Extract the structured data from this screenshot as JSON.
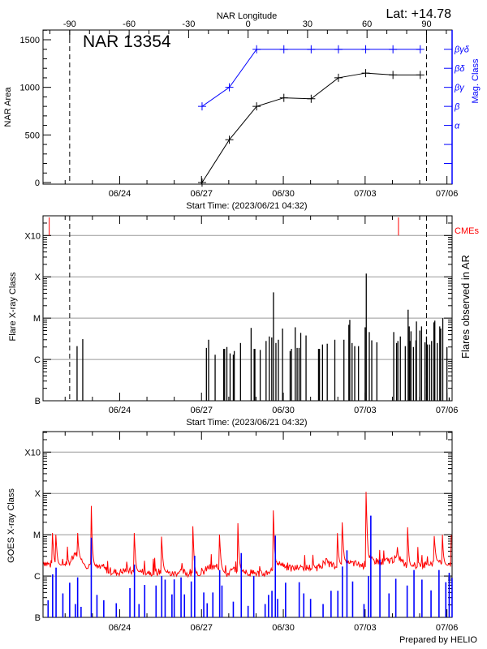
{
  "header": {
    "lat_label": "Lat: +14.78"
  },
  "footer": {
    "credit": "Prepared by HELIO"
  },
  "colors": {
    "axis": "#000000",
    "grid": "#999999",
    "mag_class": "#0000ff",
    "cme": "#ff0000",
    "goes_long": "#ff0000",
    "goes_short": "#0000ff"
  },
  "chart_data": [
    {
      "type": "line",
      "title": "NAR 13354",
      "xlabel": "Start Time: (2023/06/21 04:32)",
      "ylabel": "NAR Area",
      "x2label": "NAR Longitude",
      "y2label": "Mag. Class",
      "xlim": [
        "2023/06/21 04:32",
        "2023/07/06 04:32"
      ],
      "xticks": [
        "06/24",
        "06/27",
        "06/30",
        "07/03",
        "07/06"
      ],
      "ylim": [
        0,
        1600
      ],
      "yticks": [
        0,
        500,
        1000,
        1500
      ],
      "x2ticks": [
        -90,
        -60,
        -30,
        0,
        30,
        60,
        90
      ],
      "limb_lines": [
        {
          "longitude": -90,
          "time": "06/22 04:00"
        },
        {
          "longitude": 90,
          "time": "07/05 06:00"
        }
      ],
      "y2ticks": [
        "α",
        "β",
        "βγ",
        "βδ",
        "βγδ"
      ],
      "grid": false,
      "series": [
        {
          "name": "NAR Area",
          "color": "#000000",
          "x": [
            "06/27 00:30",
            "06/28 00:30",
            "06/29 00:30",
            "06/30 00:30",
            "07/01 00:30",
            "07/02 00:30",
            "07/03 00:30",
            "07/04 00:30",
            "07/05 00:30"
          ],
          "values": [
            0,
            450,
            800,
            890,
            880,
            1100,
            1150,
            1130,
            1130
          ]
        },
        {
          "name": "Mag. Class",
          "color": "#0000ff",
          "x": [
            "06/27 00:30",
            "06/28 00:30",
            "06/29 00:30",
            "06/30 00:30",
            "07/01 00:30",
            "07/02 00:30",
            "07/03 00:30",
            "07/04 00:30",
            "07/05 00:30"
          ],
          "values": [
            "β",
            "βγ",
            "βγδ",
            "βγδ",
            "βγδ",
            "βγδ",
            "βγδ",
            "βγδ",
            "βγδ"
          ]
        }
      ]
    },
    {
      "type": "bar",
      "xlabel": "Start Time: (2023/06/21 04:32)",
      "ylabel": "Flare X-ray Class",
      "y2label": "Flares observed in AR",
      "cme_label": "CMEs",
      "xticks": [
        "06/24",
        "06/27",
        "06/30",
        "07/03",
        "07/06"
      ],
      "yticks": [
        "B",
        "C",
        "M",
        "X",
        "X10"
      ],
      "grid": true,
      "cmes": [
        "06/21 10:00",
        "07/04 05:20"
      ],
      "flares": [
        [
          "06/22 10:30",
          "C2.1"
        ],
        [
          "06/22 15:30",
          "C3.1"
        ],
        [
          "06/27 04:20",
          "C1.9"
        ],
        [
          "06/27 06:15",
          "C3.0"
        ],
        [
          "06/27 12:00",
          "C1.3"
        ],
        [
          "06/27 19:30",
          "C1.8"
        ],
        [
          "06/27 20:20",
          "C1.8"
        ],
        [
          "06/27 22:20",
          "C2.0"
        ],
        [
          "06/28 01:10",
          "C1.4"
        ],
        [
          "06/28 04:00",
          "C1.3"
        ],
        [
          "06/28 04:50",
          "C1.6"
        ],
        [
          "06/28 10:20",
          "C2.5"
        ],
        [
          "06/28 19:40",
          "C5.8"
        ],
        [
          "06/28 22:20",
          "C1.8"
        ],
        [
          "06/28 23:00",
          "C1.8"
        ],
        [
          "06/29 03:40",
          "C1.7"
        ],
        [
          "06/29 08:50",
          "C2.8"
        ],
        [
          "06/29 11:40",
          "C3.6"
        ],
        [
          "06/29 13:50",
          "C3.4"
        ],
        [
          "06/29 15:20",
          "M4.2"
        ],
        [
          "06/29 17:30",
          "C2.5"
        ],
        [
          "06/29 19:40",
          "C3.0"
        ],
        [
          "06/29 23:20",
          "C5.6"
        ],
        [
          "06/30 06:00",
          "C1.6"
        ],
        [
          "06/30 07:10",
          "C1.8"
        ],
        [
          "06/30 10:30",
          "C6.0"
        ],
        [
          "06/30 12:10",
          "C1.9"
        ],
        [
          "06/30 13:50",
          "C1.9"
        ],
        [
          "06/30 15:20",
          "C4.4"
        ],
        [
          "06/30 20:00",
          "C3.8"
        ],
        [
          "07/01 07:00",
          "C1.8"
        ],
        [
          "07/01 07:50",
          "C1.8"
        ],
        [
          "07/01 10:30",
          "C2.3"
        ],
        [
          "07/01 14:40",
          "C2.4"
        ],
        [
          "07/01 21:20",
          "C3.0"
        ],
        [
          "07/02 05:20",
          "C3.0"
        ],
        [
          "07/02 09:40",
          "C6.9"
        ],
        [
          "07/02 10:30",
          "C9.1"
        ],
        [
          "07/02 12:30",
          "C2.5"
        ],
        [
          "07/02 14:50",
          "C2.1"
        ],
        [
          "07/02 18:10",
          "C2.1"
        ],
        [
          "07/03 00:00",
          "C6.0"
        ],
        [
          "07/03 01:00",
          "X1.2"
        ],
        [
          "07/03 03:40",
          "C4.6"
        ],
        [
          "07/03 05:50",
          "C2.9"
        ],
        [
          "07/03 10:20",
          "C2.6"
        ],
        [
          "07/04 01:10",
          "C4.6"
        ],
        [
          "07/04 03:40",
          "C2.5"
        ],
        [
          "07/04 04:50",
          "C2.8"
        ],
        [
          "07/04 07:00",
          "C3.6"
        ],
        [
          "07/04 11:20",
          "C2.1"
        ],
        [
          "07/04 13:50",
          "M1.6"
        ],
        [
          "07/04 14:50",
          "C6.3"
        ],
        [
          "07/04 15:20",
          "C2.8"
        ],
        [
          "07/04 16:20",
          "C4.8"
        ],
        [
          "07/04 18:30",
          "C2.0"
        ],
        [
          "07/04 20:40",
          "C2.9"
        ],
        [
          "07/04 21:10",
          "C8.3"
        ],
        [
          "07/05 00:10",
          "C5.0"
        ],
        [
          "07/05 01:40",
          "C6.3"
        ],
        [
          "07/05 04:40",
          "C2.6"
        ],
        [
          "07/05 06:00",
          "C3.6"
        ],
        [
          "07/05 06:50",
          "C2.3"
        ],
        [
          "07/05 08:50",
          "C2.3"
        ],
        [
          "07/05 10:30",
          "C2.8"
        ],
        [
          "07/05 12:30",
          "C7.9"
        ],
        [
          "07/05 13:20",
          "C8.7"
        ],
        [
          "07/05 15:30",
          "C2.5"
        ],
        [
          "07/05 17:40",
          "C6.3"
        ],
        [
          "07/05 18:30",
          "C5.6"
        ],
        [
          "07/05 20:20",
          "M1.0"
        ],
        [
          "07/06 00:00",
          "C2.0"
        ],
        [
          "07/06 02:00",
          "B1.2"
        ]
      ]
    },
    {
      "type": "line",
      "ylabel": "GOES X-ray Class",
      "xticks": [
        "06/24",
        "06/27",
        "06/30",
        "07/03",
        "07/06"
      ],
      "yticks": [
        "B",
        "C",
        "M",
        "X",
        "X10"
      ],
      "grid": true,
      "series": [
        {
          "color": "#ff0000",
          "background": [
            [
              "06/21 05:00",
              "C2.2"
            ],
            [
              "06/21 12:00",
              "C1.8"
            ],
            [
              "06/21 20:00",
              "C1.8"
            ],
            [
              "06/22 04:00",
              "C2.2"
            ],
            [
              "06/22 10:00",
              "C3.4"
            ],
            [
              "06/22 16:00",
              "C2.0"
            ],
            [
              "06/22 22:00",
              "C1.7"
            ],
            [
              "06/23 04:00",
              "C1.6"
            ],
            [
              "06/23 10:00",
              "C1.5"
            ],
            [
              "06/23 16:00",
              "C1.3"
            ],
            [
              "06/23 22:00",
              "C1.2"
            ],
            [
              "06/24 06:00",
              "C1.4"
            ],
            [
              "06/24 14:00",
              "C1.2"
            ],
            [
              "06/24 22:00",
              "C1.3"
            ],
            [
              "06/25 06:00",
              "C1.2"
            ],
            [
              "06/25 14:00",
              "C1.3"
            ],
            [
              "06/25 22:00",
              "C1.1"
            ],
            [
              "06/26 06:00",
              "C1.3"
            ],
            [
              "06/26 14:00",
              "C1.1"
            ],
            [
              "06/26 22:00",
              "C1.0"
            ],
            [
              "06/27 06:00",
              "C1.6"
            ],
            [
              "06/27 14:00",
              "C1.6"
            ],
            [
              "06/27 22:00",
              "C1.1"
            ],
            [
              "06/28 06:00",
              "C1.5"
            ],
            [
              "06/28 14:00",
              "C1.2"
            ],
            [
              "06/28 22:00",
              "C1.2"
            ],
            [
              "06/29 06:00",
              "C1.1"
            ],
            [
              "06/29 14:00",
              "C1.4"
            ],
            [
              "06/29 22:00",
              "C2.0"
            ],
            [
              "06/30 06:00",
              "C1.5"
            ],
            [
              "06/30 14:00",
              "C1.6"
            ],
            [
              "06/30 22:00",
              "C1.6"
            ],
            [
              "07/01 06:00",
              "C1.6"
            ],
            [
              "07/01 14:00",
              "C2.2"
            ],
            [
              "07/01 22:00",
              "C1.6"
            ],
            [
              "07/02 06:00",
              "C2.0"
            ],
            [
              "07/02 14:00",
              "C2.0"
            ],
            [
              "07/02 22:00",
              "C1.8"
            ],
            [
              "07/03 06:00",
              "C2.4"
            ],
            [
              "07/03 14:00",
              "C2.2"
            ],
            [
              "07/03 22:00",
              "C2.4"
            ],
            [
              "07/04 06:00",
              "C2.8"
            ],
            [
              "07/04 14:00",
              "C1.5"
            ],
            [
              "07/04 22:00",
              "C1.9"
            ],
            [
              "07/05 06:00",
              "C1.9"
            ],
            [
              "07/05 14:00",
              "C2.2"
            ],
            [
              "07/05 22:00",
              "C1.8"
            ],
            [
              "07/06 04:00",
              "C1.8"
            ]
          ],
          "peaks": [
            [
              "06/21 13:00",
              "M1.1"
            ],
            [
              "06/21 16:00",
              "M1.0"
            ],
            [
              "06/22 11:00",
              "M1.1"
            ],
            [
              "06/22 23:00",
              "M5.0"
            ],
            [
              "06/24 13:00",
              "M1.1"
            ],
            [
              "06/25 13:00",
              "C9.0"
            ],
            [
              "06/26 16:30",
              "M1.6"
            ],
            [
              "06/27 16:00",
              "M1.0"
            ],
            [
              "06/28 08:00",
              "M1.9"
            ],
            [
              "06/29 15:20",
              "M3.9"
            ],
            [
              "07/01 23:40",
              "M1.1"
            ],
            [
              "07/02 04:00",
              "M2.0"
            ],
            [
              "07/03 01:00",
              "X1.1"
            ],
            [
              "07/04 13:30",
              "M1.5"
            ],
            [
              "07/05 13:00",
              "C9.3"
            ],
            [
              "07/05 20:00",
              "M1.0"
            ],
            [
              "07/06 04:00",
              "C9.8"
            ]
          ]
        },
        {
          "color": "#0000ff",
          "peaks": [
            [
              "06/21 09:00",
              "B2.6"
            ],
            [
              "06/21 13:00",
              "C1.1"
            ],
            [
              "06/21 16:00",
              "C1.6"
            ],
            [
              "06/21 22:00",
              "B3.8"
            ],
            [
              "06/22 04:00",
              "B6.9"
            ],
            [
              "06/22 09:00",
              "B2.1"
            ],
            [
              "06/22 11:00",
              "B9.3"
            ],
            [
              "06/22 14:00",
              "B1.8"
            ],
            [
              "06/22 23:00",
              "C8.5"
            ],
            [
              "06/23 04:00",
              "B3.5"
            ],
            [
              "06/23 10:00",
              "B2.6"
            ],
            [
              "06/23 21:00",
              "B2.2"
            ],
            [
              "06/24 09:00",
              "B5.1"
            ],
            [
              "06/24 13:00",
              "C1.9"
            ],
            [
              "06/24 17:00",
              "B2.1"
            ],
            [
              "06/24 22:00",
              "B6.1"
            ],
            [
              "06/25 08:00",
              "B5.9"
            ],
            [
              "06/25 13:00",
              "C1.0"
            ],
            [
              "06/25 16:00",
              "B8.2"
            ],
            [
              "06/25 22:00",
              "B3.6"
            ],
            [
              "06/26 00:00",
              "B8.3"
            ],
            [
              "06/26 06:00",
              "B9.3"
            ],
            [
              "06/26 09:00",
              "B3.6"
            ],
            [
              "06/26 15:00",
              "B7.4"
            ],
            [
              "06/26 18:00",
              "C3.1"
            ],
            [
              "06/27 02:00",
              "B4.0"
            ],
            [
              "06/27 05:00",
              "B2.2"
            ],
            [
              "06/27 10:00",
              "B4.0"
            ],
            [
              "06/27 16:00",
              "C1.4"
            ],
            [
              "06/27 18:00",
              "B5.9"
            ],
            [
              "06/28 04:00",
              "B2.4"
            ],
            [
              "06/28 11:00",
              "C3.6"
            ],
            [
              "06/28 17:00",
              "B1.9"
            ],
            [
              "06/28 22:00",
              "C1.0"
            ],
            [
              "06/29 08:00",
              "B2.1"
            ],
            [
              "06/29 11:00",
              "B3.5"
            ],
            [
              "06/29 14:00",
              "B4.4"
            ],
            [
              "06/29 17:00",
              "C9.5"
            ],
            [
              "06/29 19:00",
              "B2.8"
            ],
            [
              "06/30 02:00",
              "B6.9"
            ],
            [
              "06/30 14:00",
              "B7.1"
            ],
            [
              "06/30 18:00",
              "B3.8"
            ],
            [
              "07/01 00:00",
              "B2.8"
            ],
            [
              "07/01 11:00",
              "B2.1"
            ],
            [
              "07/01 18:00",
              "B4.4"
            ],
            [
              "07/02 00:00",
              "B4.4"
            ],
            [
              "07/02 04:00",
              "C1.7"
            ],
            [
              "07/02 08:00",
              "C4.2"
            ],
            [
              "07/02 13:00",
              "B7.4"
            ],
            [
              "07/02 23:00",
              "B2.1"
            ],
            [
              "07/03 03:00",
              "C1.0"
            ],
            [
              "07/03 05:00",
              "M2.9"
            ],
            [
              "07/03 13:00",
              "C2.5"
            ],
            [
              "07/03 21:00",
              "B3.8"
            ],
            [
              "07/04 03:00",
              "B8.6"
            ],
            [
              "07/04 13:00",
              "B5.9"
            ],
            [
              "07/04 19:00",
              "C1.4"
            ],
            [
              "07/05 02:00",
              "B8.2"
            ],
            [
              "07/05 10:00",
              "B4.5"
            ],
            [
              "07/05 17:00",
              "C1.4"
            ],
            [
              "07/05 23:00",
              "B7.1"
            ],
            [
              "07/06 02:00",
              "C1.2"
            ],
            [
              "07/06 04:30",
              "B9.0"
            ]
          ]
        }
      ]
    }
  ]
}
